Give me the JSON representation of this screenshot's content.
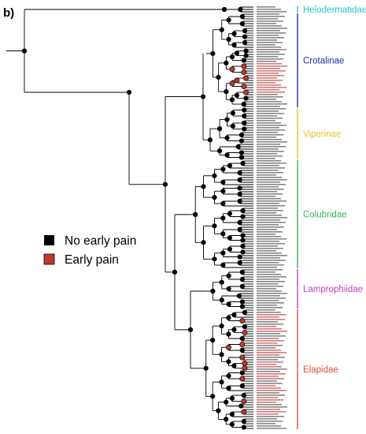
{
  "panel_label": "b)",
  "legend": {
    "items": [
      {
        "label": "No early pain",
        "color": "#000000"
      },
      {
        "label": "Early pain",
        "color": "#c0392b"
      }
    ]
  },
  "clades": [
    {
      "name": "Helodermatidae",
      "color": "#2ec4d6",
      "tip_range": [
        0,
        2
      ]
    },
    {
      "name": "Crotalinae",
      "color": "#1f2fb5",
      "tip_range": [
        3,
        42
      ]
    },
    {
      "name": "Viperinae",
      "color": "#e8c22a",
      "tip_range": [
        43,
        64
      ]
    },
    {
      "name": "Colubridae",
      "color": "#3bb35a",
      "tip_range": [
        65,
        110
      ]
    },
    {
      "name": "Lamprophiidae",
      "color": "#c43fc4",
      "tip_range": [
        111,
        127
      ]
    },
    {
      "name": "Elapidae",
      "color": "#e0503a",
      "tip_range": [
        128,
        178
      ]
    }
  ],
  "tree": {
    "tip_count": 179,
    "early_pain_tips": [
      24,
      25,
      26,
      27,
      28,
      29,
      30,
      31,
      32,
      33,
      34,
      35,
      36,
      130,
      131,
      132,
      135,
      136,
      137,
      140,
      141,
      142,
      145,
      146,
      147,
      150,
      151,
      152,
      155,
      156,
      157,
      160,
      161,
      162,
      165,
      166,
      167,
      170,
      171,
      172
    ]
  }
}
